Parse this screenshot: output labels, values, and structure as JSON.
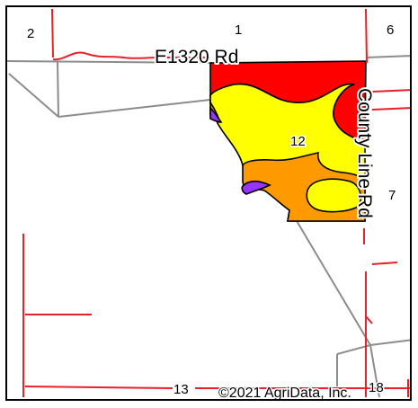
{
  "map": {
    "sections": {
      "s1": "1",
      "s2": "2",
      "s6": "6",
      "s7": "7",
      "s12": "12",
      "s13": "13",
      "s18": "18"
    },
    "roads": {
      "e1320": "E1320 Rd",
      "county_line": "County Line Rd"
    },
    "copyright": "©2021 AgriData, Inc.",
    "colors": {
      "red_soil": "#ff0000",
      "yellow_soil": "#ffff00",
      "orange_soil": "#ff9900",
      "purple_soil": "#9933ff",
      "road_line": "#e8202a",
      "section_line": "#8c8c8c"
    }
  }
}
